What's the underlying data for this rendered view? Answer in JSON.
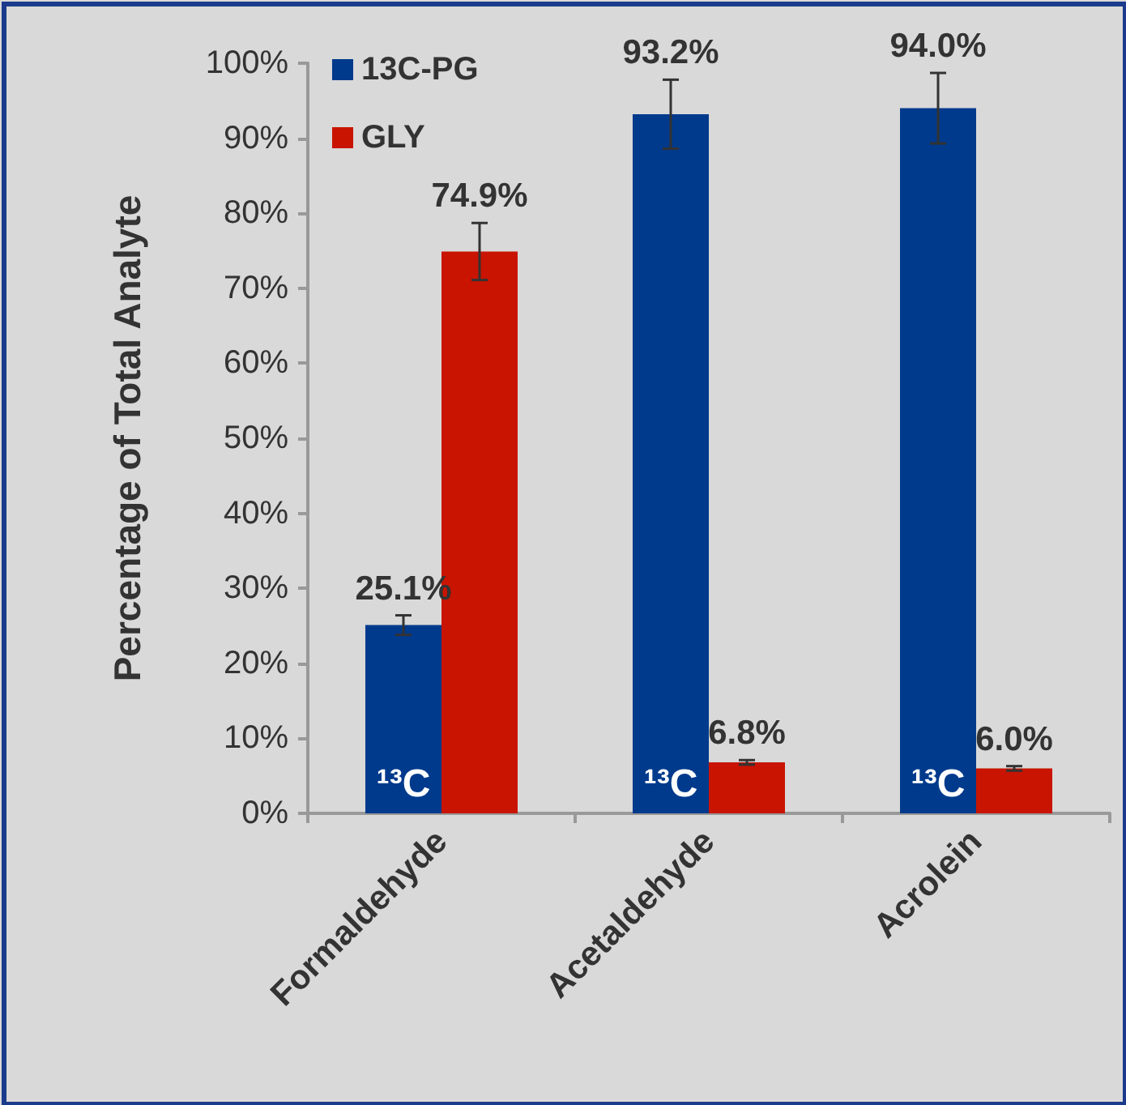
{
  "chart_data": {
    "type": "bar",
    "ylabel": "Percentage of Total Analyte",
    "categories": [
      "Formaldehyde",
      "Acetaldehyde",
      "Acrolein"
    ],
    "series": [
      {
        "name": "13C-PG",
        "color": "#003a8c",
        "values": [
          25.1,
          93.2,
          94.0
        ],
        "errors": [
          1.3,
          4.6,
          4.7
        ],
        "value_labels": [
          "25.1%",
          "93.2%",
          "94.0%"
        ]
      },
      {
        "name": "GLY",
        "color": "#c81400",
        "values": [
          74.9,
          6.8,
          6.0
        ],
        "errors": [
          3.8,
          0.3,
          0.3
        ],
        "value_labels": [
          "74.9%",
          "6.8%",
          "6.0%"
        ]
      }
    ],
    "ylim": [
      0,
      100
    ],
    "yticks": [
      {
        "value": 0,
        "label": "0%"
      },
      {
        "value": 10,
        "label": "10%"
      },
      {
        "value": 20,
        "label": "20%"
      },
      {
        "value": 30,
        "label": "30%"
      },
      {
        "value": 40,
        "label": "40%"
      },
      {
        "value": 50,
        "label": "50%"
      },
      {
        "value": 60,
        "label": "60%"
      },
      {
        "value": 70,
        "label": "70%"
      },
      {
        "value": 80,
        "label": "80%"
      },
      {
        "value": 90,
        "label": "90%"
      },
      {
        "value": 100,
        "label": "100%"
      }
    ],
    "annotations": [
      "¹³C",
      "¹³C",
      "¹³C"
    ],
    "grid": false,
    "legend": "top left"
  }
}
